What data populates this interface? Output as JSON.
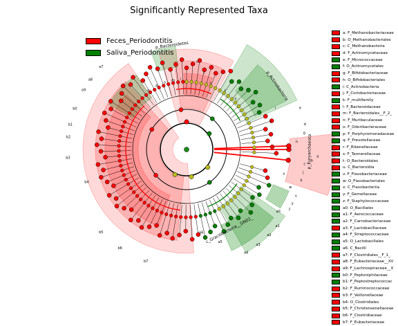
{
  "title": "Significantly Represented Taxa",
  "colors": {
    "feces": "#ff0000",
    "saliva": "#007f00",
    "neutral": "#bcbc1c",
    "center": "#1a8a1a"
  },
  "legend": [
    {
      "label": "Feces_Periodontitis",
      "group": "feces"
    },
    {
      "label": "Saliva_Periodontitis",
      "group": "saliva"
    }
  ],
  "taxa": [
    {
      "label": "a: F_Methanobacteriaceae",
      "group": "feces"
    },
    {
      "label": "b: O_Methanobacteriales",
      "group": "feces"
    },
    {
      "label": "c: C_Methanobacteria",
      "group": "feces"
    },
    {
      "label": "d: F_Actinomycetaceae",
      "group": "feces"
    },
    {
      "label": "e: F_Micrococcaceae",
      "group": "saliva"
    },
    {
      "label": "f: O_Actinomycetales",
      "group": "saliva"
    },
    {
      "label": "g: F_Bifidobacteriaceae",
      "group": "feces"
    },
    {
      "label": "h: O_Bifidobacteriales",
      "group": "feces"
    },
    {
      "label": "i: C_Actinobacteria",
      "group": "saliva"
    },
    {
      "label": "j: F_Coriobacteriaceae",
      "group": "feces"
    },
    {
      "label": "k: F_multifamily",
      "group": "saliva"
    },
    {
      "label": "l: F_Bacteroidaceae",
      "group": "feces"
    },
    {
      "label": "m: F_Bacteroidales__F_2_",
      "group": "feces"
    },
    {
      "label": "n: F_Muribaculaceae",
      "group": "feces"
    },
    {
      "label": "o: F_Odoribacteraceae",
      "group": "feces"
    },
    {
      "label": "p: F_Porphyromonadaceae",
      "group": "saliva"
    },
    {
      "label": "q: F_Prevotellaceae",
      "group": "saliva"
    },
    {
      "label": "r: F_Rikenellaceae",
      "group": "feces"
    },
    {
      "label": "s: F_Tannerellaceae",
      "group": "feces"
    },
    {
      "label": "t: O_Bacteroidales",
      "group": "feces"
    },
    {
      "label": "u: C_Bacteroidia",
      "group": "feces"
    },
    {
      "label": "v: F_Flavobacteriaceae",
      "group": "saliva"
    },
    {
      "label": "w: O_Flavobacteriales",
      "group": "saliva"
    },
    {
      "label": "x: C_Flavobacteriia",
      "group": "saliva"
    },
    {
      "label": "y: F_Gemellaceae",
      "group": "saliva"
    },
    {
      "label": "z: F_Staphylococcaceae",
      "group": "saliva"
    },
    {
      "label": "a0: O_Bacillales",
      "group": "saliva"
    },
    {
      "label": "a1: F_Aerococcaceae",
      "group": "saliva"
    },
    {
      "label": "a2: F_Carnobacteriaceae",
      "group": "saliva"
    },
    {
      "label": "a3: F_Lactobacillaceae",
      "group": "feces"
    },
    {
      "label": "a4: F_Streptococcaceae",
      "group": "saliva"
    },
    {
      "label": "a5: O_Lactobacillales",
      "group": "saliva"
    },
    {
      "label": "a6: C_Bacilli",
      "group": "saliva"
    },
    {
      "label": "a7: F_Clostridiales__F_1_",
      "group": "feces"
    },
    {
      "label": "a8: F_Eubacteriaceae__XV",
      "group": "feces"
    },
    {
      "label": "a9: F_Lachnospiraceae__X",
      "group": "feces"
    },
    {
      "label": "b0: F_Peptoniphilaceae",
      "group": "saliva"
    },
    {
      "label": "b1: F_Peptostreptococcac",
      "group": "saliva"
    },
    {
      "label": "b2: F_Ruminococcaceae",
      "group": "feces"
    },
    {
      "label": "b3: F_Veillonellaceae",
      "group": "feces"
    },
    {
      "label": "b4: O_Clostridiales",
      "group": "feces"
    },
    {
      "label": "b5: F_Christensenellaceae",
      "group": "feces"
    },
    {
      "label": "b6: F_Clostridiaceae",
      "group": "feces"
    },
    {
      "label": "b7: F_Eubacteriaceae",
      "group": "feces"
    }
  ],
  "clades": [
    {
      "text": "p_Bacteroidetes",
      "ang": 352,
      "rad": 152
    },
    {
      "text": "p_Actinobacteria",
      "ang": 55,
      "rad": 160
    },
    {
      "text": "p_Euryarchaeota",
      "ang": 91,
      "rad": 178
    },
    {
      "text": "c_Gracilibacteria__GN02_",
      "ang": 152,
      "rad": 132
    }
  ],
  "letters": [
    {
      "text": "u",
      "ang": 7,
      "rad": 128
    },
    {
      "text": "t",
      "ang": 13,
      "rad": 114
    },
    {
      "text": "l",
      "ang": 355,
      "rad": 102
    },
    {
      "text": "n",
      "ang": 20,
      "rad": 102
    },
    {
      "text": "r",
      "ang": 33,
      "rad": 102
    },
    {
      "text": "s",
      "ang": 44,
      "rad": 102
    },
    {
      "text": "q",
      "ang": 327,
      "rad": 102
    },
    {
      "text": "p",
      "ang": 335,
      "rad": 102
    },
    {
      "text": "o",
      "ang": 342,
      "rad": 102
    },
    {
      "text": "m",
      "ang": 349,
      "rad": 102
    },
    {
      "text": "i",
      "ang": 65,
      "rad": 142
    },
    {
      "text": "f",
      "ang": 72,
      "rad": 128
    },
    {
      "text": "e",
      "ang": 70,
      "rad": 175
    },
    {
      "text": "d",
      "ang": 78,
      "rad": 175
    },
    {
      "text": "g",
      "ang": 82,
      "rad": 172
    },
    {
      "text": "h",
      "ang": 86,
      "rad": 160
    },
    {
      "text": "a",
      "ang": 93,
      "rad": 190
    },
    {
      "text": "b",
      "ang": 95,
      "rad": 182
    },
    {
      "text": "c",
      "ang": 97,
      "rad": 172
    },
    {
      "text": "j",
      "ang": 101,
      "rad": 172
    },
    {
      "text": "k",
      "ang": 105,
      "rad": 172
    },
    {
      "text": "x",
      "ang": 104,
      "rad": 145
    },
    {
      "text": "w",
      "ang": 110,
      "rad": 160
    },
    {
      "text": "v",
      "ang": 113,
      "rad": 172
    },
    {
      "text": "b7",
      "ang": 200,
      "rad": 172
    },
    {
      "text": "b6",
      "ang": 214,
      "rad": 172
    },
    {
      "text": "b5",
      "ang": 226,
      "rad": 172
    },
    {
      "text": "b4",
      "ang": 252,
      "rad": 152
    },
    {
      "text": "b3",
      "ang": 266,
      "rad": 172
    },
    {
      "text": "b2",
      "ang": 276,
      "rad": 172
    },
    {
      "text": "b1",
      "ang": 282,
      "rad": 172
    },
    {
      "text": "b0",
      "ang": 290,
      "rad": 172
    },
    {
      "text": "a9",
      "ang": 300,
      "rad": 172
    },
    {
      "text": "a8",
      "ang": 306,
      "rad": 172
    },
    {
      "text": "a7",
      "ang": 314,
      "rad": 172
    },
    {
      "text": "a6",
      "ang": 170,
      "rad": 122
    },
    {
      "text": "a5",
      "ang": 160,
      "rad": 142
    },
    {
      "text": "a4",
      "ang": 150,
      "rad": 172
    },
    {
      "text": "a3",
      "ang": 143,
      "rad": 172
    },
    {
      "text": "a2",
      "ang": 136,
      "rad": 172
    },
    {
      "text": "a1",
      "ang": 130,
      "rad": 172
    },
    {
      "text": "a0",
      "ang": 124,
      "rad": 160
    },
    {
      "text": "z",
      "ang": 120,
      "rad": 172
    },
    {
      "text": "y",
      "ang": 117,
      "rad": 172
    }
  ]
}
